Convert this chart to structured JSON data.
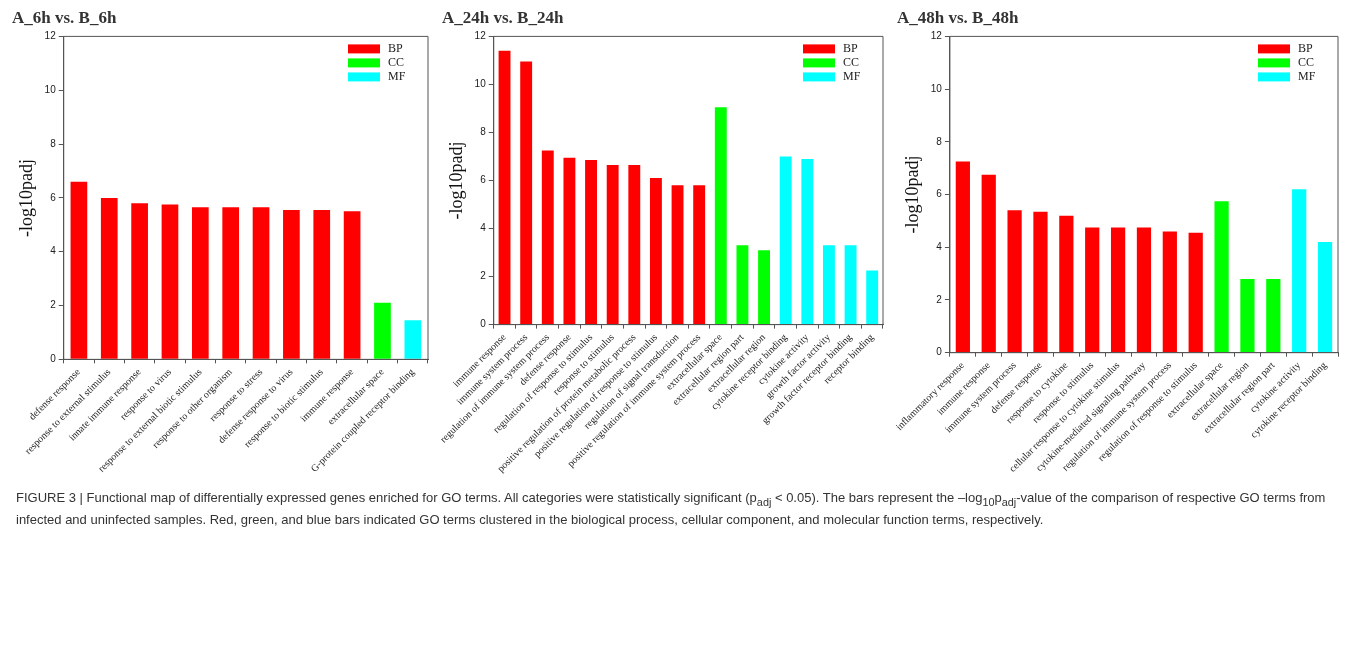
{
  "chart_data": [
    {
      "type": "bar",
      "title": "A_6h vs. B_6h",
      "ylabel": "-log10padj",
      "categories": [
        "defense response",
        "response to external stimulus",
        "innate immune response",
        "response to virus",
        "response to external biotic stimulus",
        "response to other organism",
        "response to stress",
        "defense response to virus",
        "response to biotic stimulus",
        "immune response",
        "extracellular space",
        "G-protein coupled receptor binding"
      ],
      "series": [
        {
          "name": "BP",
          "color": "#ff0000",
          "values": [
            6.6,
            6.0,
            5.8,
            5.75,
            5.65,
            5.65,
            5.65,
            5.55,
            5.55,
            5.5,
            null,
            null
          ]
        },
        {
          "name": "CC",
          "color": "#00ff00",
          "values": [
            null,
            null,
            null,
            null,
            null,
            null,
            null,
            null,
            null,
            null,
            2.1,
            null
          ]
        },
        {
          "name": "MF",
          "color": "#00ffff",
          "values": [
            null,
            null,
            null,
            null,
            null,
            null,
            null,
            null,
            null,
            null,
            null,
            1.45
          ]
        }
      ],
      "ylim": [
        0,
        12
      ],
      "yticks": [
        0,
        2,
        4,
        6,
        8,
        10,
        12
      ],
      "legend": "top right"
    },
    {
      "type": "bar",
      "title": "A_24h vs. B_24h",
      "ylabel": "-log10padj",
      "categories": [
        "immune response",
        "immune system process",
        "regulation of immune system process",
        "defense response",
        "regulation of response to stimulus",
        "response to stimulus",
        "positive regulation of protein metabolic process",
        "positive regulation of response to stimulus",
        "regulation of signal transduction",
        "positive regulation of immune system process",
        "extracellular space",
        "extracellular region part",
        "extracellular region",
        "cytokine receptor binding",
        "cytokine activity",
        "growth factor activity",
        "growth factor receptor binding",
        "receptor binding"
      ],
      "series": [
        {
          "name": "BP",
          "color": "#ff0000",
          "values": [
            11.4,
            10.95,
            7.25,
            6.95,
            6.85,
            6.65,
            6.65,
            6.1,
            5.8,
            5.8,
            null,
            null,
            null,
            null,
            null,
            null,
            null,
            null
          ]
        },
        {
          "name": "CC",
          "color": "#00ff00",
          "values": [
            null,
            null,
            null,
            null,
            null,
            null,
            null,
            null,
            null,
            null,
            9.05,
            3.3,
            3.1,
            null,
            null,
            null,
            null,
            null
          ]
        },
        {
          "name": "MF",
          "color": "#00ffff",
          "values": [
            null,
            null,
            null,
            null,
            null,
            null,
            null,
            null,
            null,
            null,
            null,
            null,
            null,
            7.0,
            6.9,
            3.3,
            3.3,
            2.25
          ]
        }
      ],
      "ylim": [
        0,
        12
      ],
      "yticks": [
        0,
        2,
        4,
        6,
        8,
        10,
        12
      ],
      "legend": "top right"
    },
    {
      "type": "bar",
      "title": "A_48h vs. B_48h",
      "ylabel": "-log10padj",
      "categories": [
        "inflammatory response",
        "immune response",
        "immune system process",
        "defense response",
        "response to cytokine",
        "response to stimulus",
        "cellular response to cytokine stimulus",
        "cytokine-mediated signaling pathway",
        "regulation of immune system process",
        "regulation of response to stimulus",
        "extracellular space",
        "extracellular region",
        "extracellular region part",
        "cytokine activity",
        "cytokine receptor binding"
      ],
      "series": [
        {
          "name": "BP",
          "color": "#ff0000",
          "values": [
            7.25,
            6.75,
            5.4,
            5.35,
            5.2,
            4.75,
            4.75,
            4.75,
            4.6,
            4.55,
            null,
            null,
            null,
            null,
            null
          ]
        },
        {
          "name": "CC",
          "color": "#00ff00",
          "values": [
            null,
            null,
            null,
            null,
            null,
            null,
            null,
            null,
            null,
            null,
            5.75,
            2.8,
            2.8,
            null,
            null
          ]
        },
        {
          "name": "MF",
          "color": "#00ffff",
          "values": [
            null,
            null,
            null,
            null,
            null,
            null,
            null,
            null,
            null,
            null,
            null,
            null,
            null,
            6.2,
            4.2
          ]
        }
      ],
      "ylim": [
        0,
        12
      ],
      "yticks": [
        0,
        2,
        4,
        6,
        8,
        10,
        12
      ],
      "legend": "top right",
      "annotations": [
        "FIGURE 3 | Functional map of differentially expressed genes enriched for GO terms. All categories were statistically significant (p$_{adj}$ < 0.05). The bars represent the –log$_{10}$p$_{adj}$-value of the comparison of respective GO terms from infected and uninfected samples. Red, green, and blue bars indicated GO terms clustered in the biological process, cellular component, and molecular function terms, respectively."
      ]
    }
  ]
}
